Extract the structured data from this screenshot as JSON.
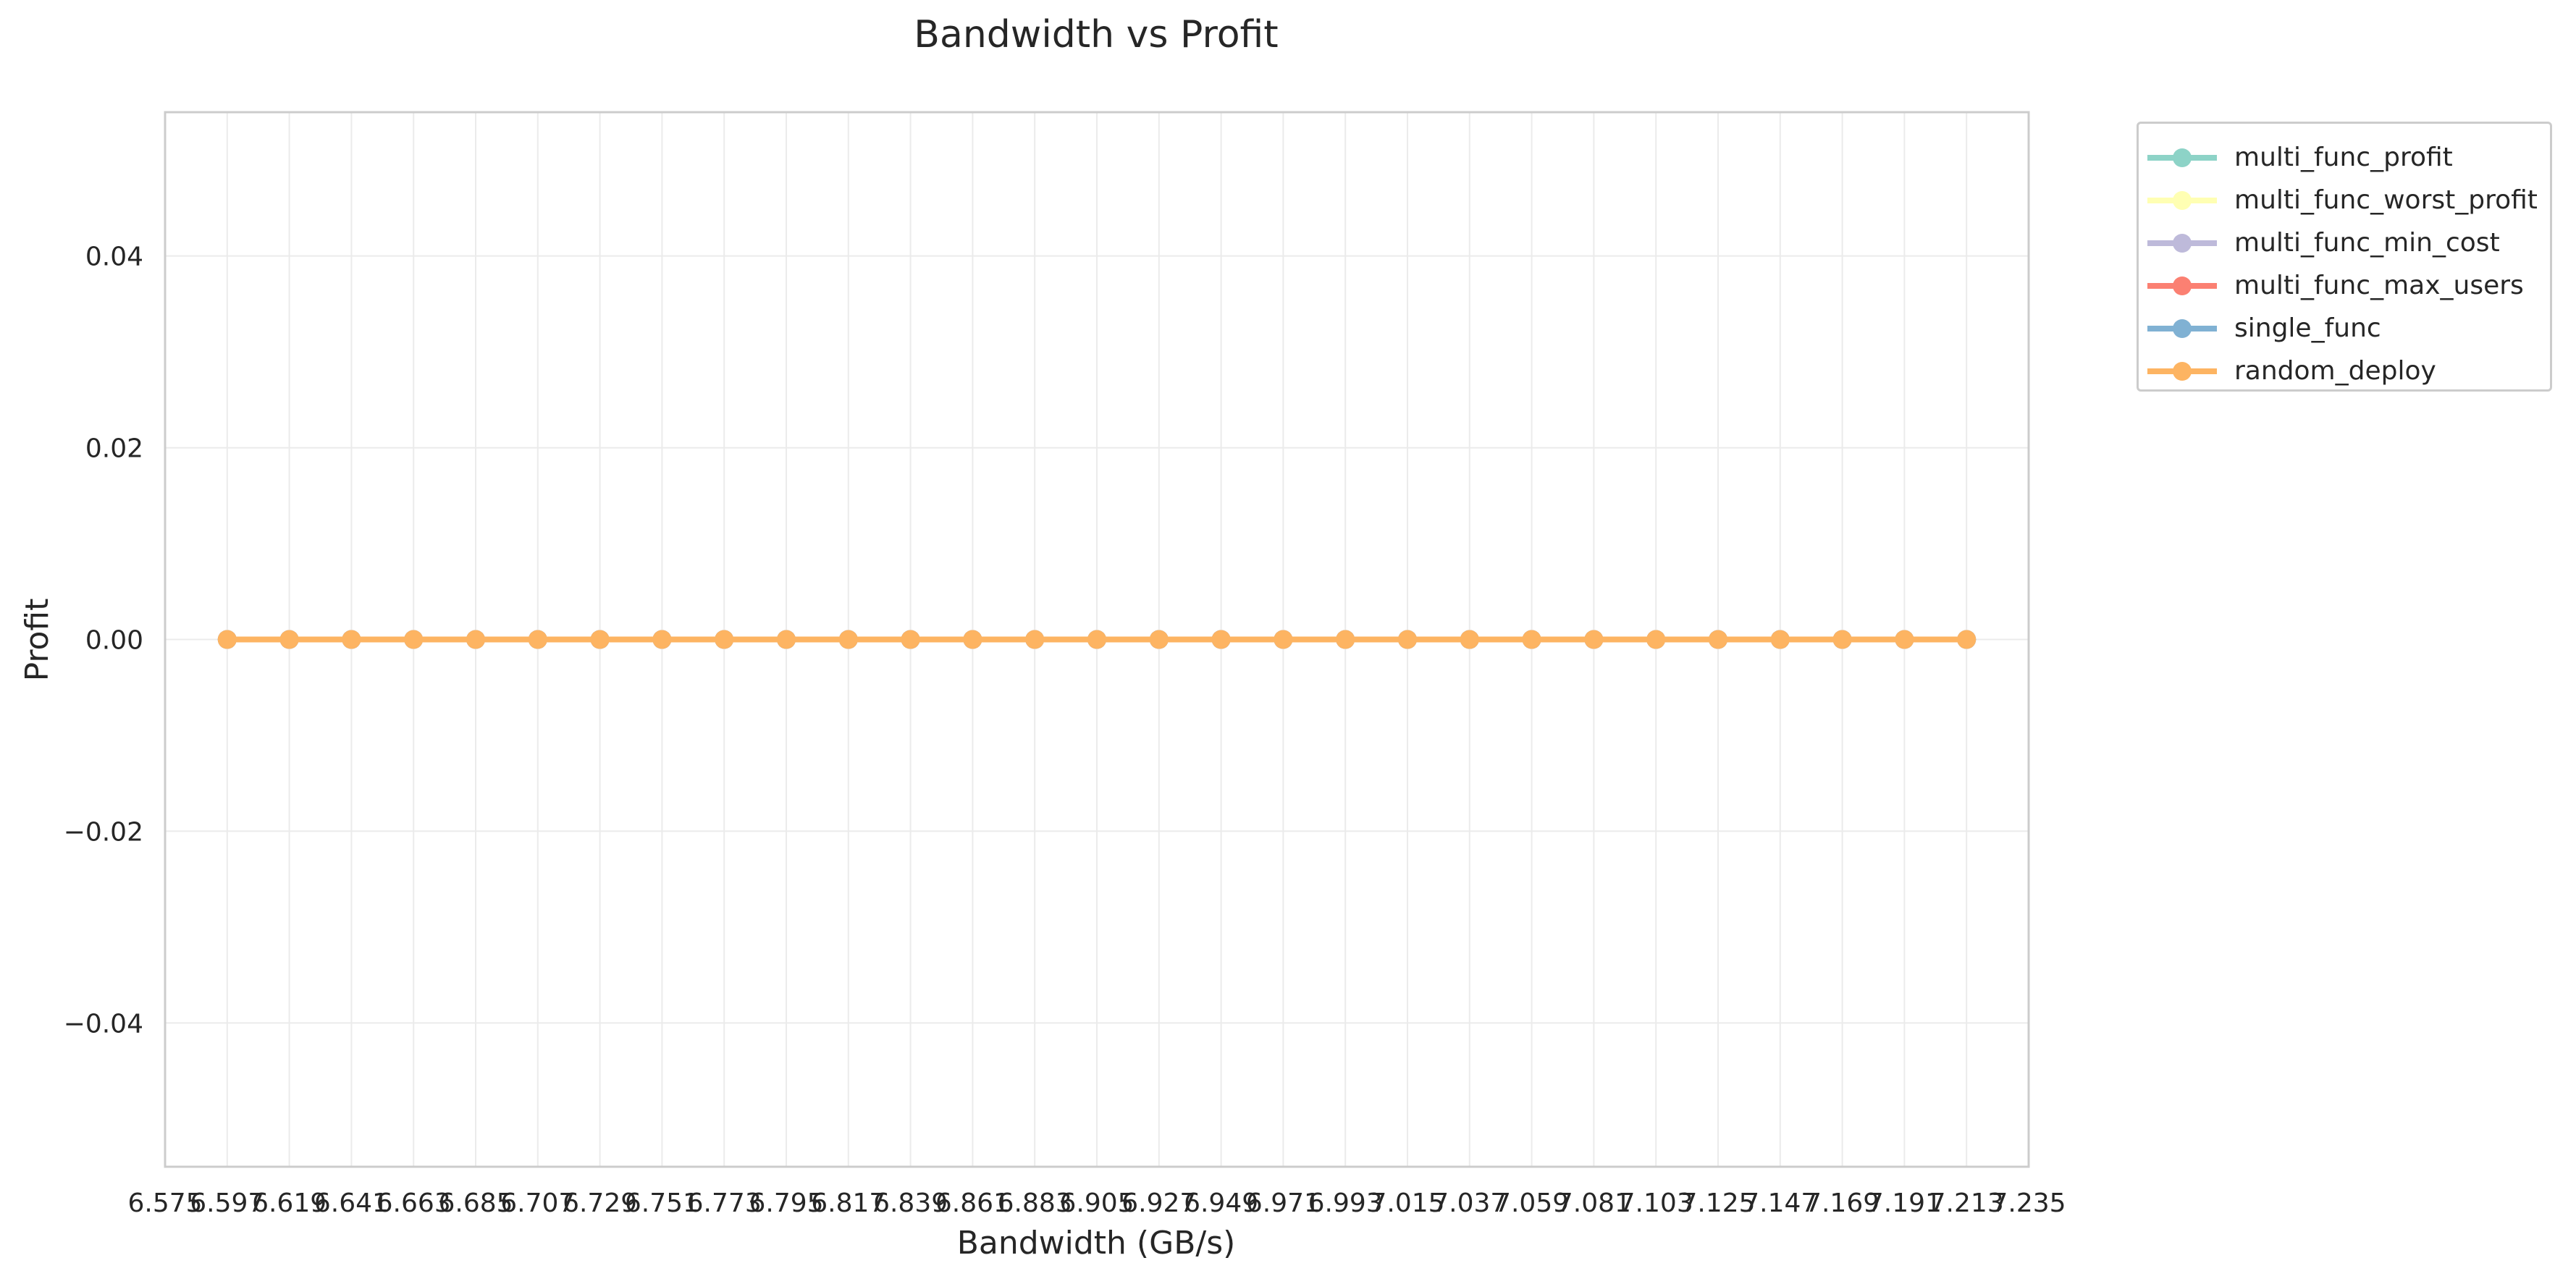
{
  "chart_data": {
    "type": "line",
    "title": "Bandwidth vs Profit",
    "xlabel": "Bandwidth (GB/s)",
    "ylabel": "Profit",
    "x_tick_labels": [
      "6.575",
      "6.597",
      "6.619",
      "6.641",
      "6.663",
      "6.685",
      "6.707",
      "6.729",
      "6.751",
      "6.773",
      "6.795",
      "6.817",
      "6.839",
      "6.861",
      "6.883",
      "6.905",
      "6.927",
      "6.949",
      "6.971",
      "6.993",
      "7.015",
      "7.037",
      "7.059",
      "7.081",
      "7.103",
      "7.125",
      "7.147",
      "7.169",
      "7.191",
      "7.213",
      "7.235"
    ],
    "xlim": [
      6.575,
      7.235
    ],
    "x": [
      6.597,
      6.619,
      6.641,
      6.663,
      6.685,
      6.707,
      6.729,
      6.751,
      6.773,
      6.795,
      6.817,
      6.839,
      6.861,
      6.883,
      6.905,
      6.927,
      6.949,
      6.971,
      6.993,
      7.015,
      7.037,
      7.059,
      7.081,
      7.103,
      7.125,
      7.147,
      7.169,
      7.191,
      7.213
    ],
    "y_ticks": [
      -0.04,
      -0.02,
      0.0,
      0.02,
      0.04
    ],
    "y_tick_labels": [
      "−0.04",
      "−0.02",
      "0.00",
      "0.02",
      "0.04"
    ],
    "ylim": [
      -0.055,
      0.055
    ],
    "grid": true,
    "legend_position": "outside upper right",
    "series": [
      {
        "name": "multi_func_profit",
        "color": "#8dd3c7",
        "values": [
          0,
          0,
          0,
          0,
          0,
          0,
          0,
          0,
          0,
          0,
          0,
          0,
          0,
          0,
          0,
          0,
          0,
          0,
          0,
          0,
          0,
          0,
          0,
          0,
          0,
          0,
          0,
          0,
          0
        ]
      },
      {
        "name": "multi_func_worst_profit",
        "color": "#ffffb3",
        "values": [
          0,
          0,
          0,
          0,
          0,
          0,
          0,
          0,
          0,
          0,
          0,
          0,
          0,
          0,
          0,
          0,
          0,
          0,
          0,
          0,
          0,
          0,
          0,
          0,
          0,
          0,
          0,
          0,
          0
        ]
      },
      {
        "name": "multi_func_min_cost",
        "color": "#bebada",
        "values": [
          0,
          0,
          0,
          0,
          0,
          0,
          0,
          0,
          0,
          0,
          0,
          0,
          0,
          0,
          0,
          0,
          0,
          0,
          0,
          0,
          0,
          0,
          0,
          0,
          0,
          0,
          0,
          0,
          0
        ]
      },
      {
        "name": "multi_func_max_users",
        "color": "#fb8072",
        "values": [
          0,
          0,
          0,
          0,
          0,
          0,
          0,
          0,
          0,
          0,
          0,
          0,
          0,
          0,
          0,
          0,
          0,
          0,
          0,
          0,
          0,
          0,
          0,
          0,
          0,
          0,
          0,
          0,
          0
        ]
      },
      {
        "name": "single_func",
        "color": "#80b1d3",
        "values": [
          0,
          0,
          0,
          0,
          0,
          0,
          0,
          0,
          0,
          0,
          0,
          0,
          0,
          0,
          0,
          0,
          0,
          0,
          0,
          0,
          0,
          0,
          0,
          0,
          0,
          0,
          0,
          0,
          0
        ]
      },
      {
        "name": "random_deploy",
        "color": "#fdb462",
        "values": [
          0,
          0,
          0,
          0,
          0,
          0,
          0,
          0,
          0,
          0,
          0,
          0,
          0,
          0,
          0,
          0,
          0,
          0,
          0,
          0,
          0,
          0,
          0,
          0,
          0,
          0,
          0,
          0,
          0
        ]
      }
    ]
  }
}
